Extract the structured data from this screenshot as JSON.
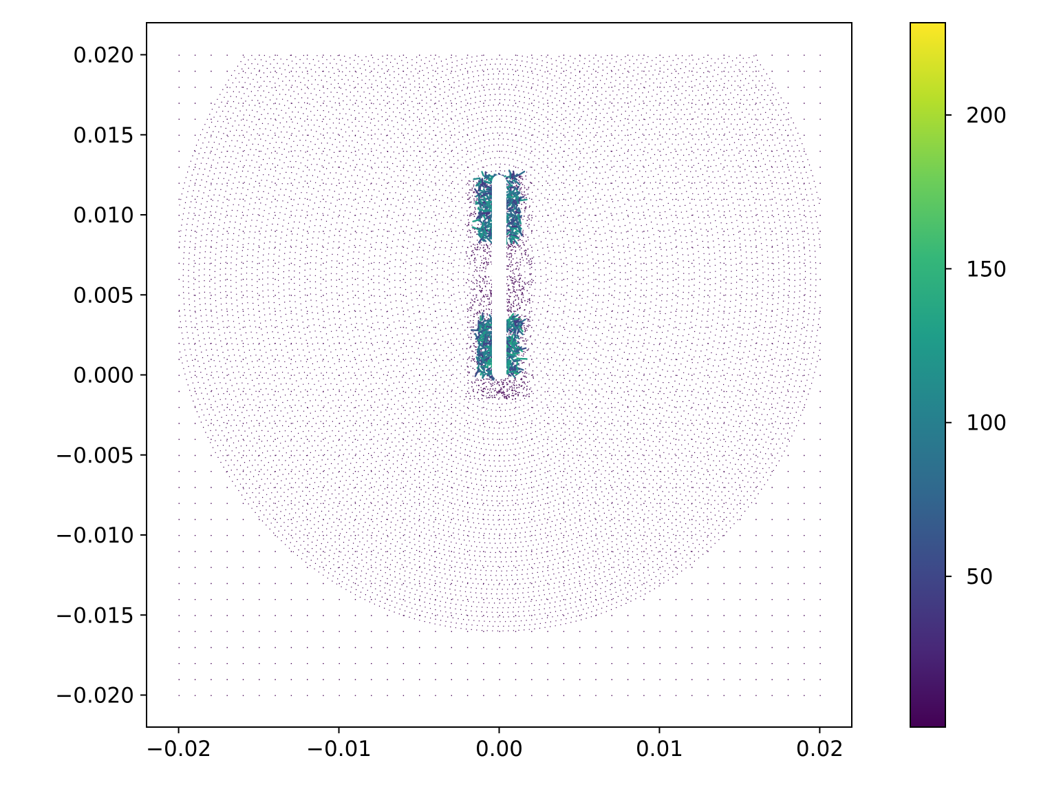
{
  "chart_data": {
    "type": "scatter",
    "title": "",
    "xlabel": "",
    "ylabel": "",
    "xlim": [
      -0.022,
      0.022
    ],
    "ylim": [
      -0.022,
      0.022
    ],
    "grid": false,
    "legend": "none",
    "x_ticks": [
      {
        "value": -0.02,
        "label": "−0.02"
      },
      {
        "value": -0.01,
        "label": "−0.01"
      },
      {
        "value": 0.0,
        "label": "0.00"
      },
      {
        "value": 0.01,
        "label": "0.01"
      },
      {
        "value": 0.02,
        "label": "0.02"
      }
    ],
    "y_ticks": [
      {
        "value": 0.02,
        "label": "0.020"
      },
      {
        "value": 0.015,
        "label": "0.015"
      },
      {
        "value": 0.01,
        "label": "0.010"
      },
      {
        "value": 0.005,
        "label": "0.005"
      },
      {
        "value": 0.0,
        "label": "0.000"
      },
      {
        "value": -0.005,
        "label": "−0.005"
      },
      {
        "value": -0.01,
        "label": "−0.010"
      },
      {
        "value": -0.015,
        "label": "−0.015"
      },
      {
        "value": -0.02,
        "label": "−0.020"
      }
    ],
    "grid_extent": {
      "x": [
        -0.02,
        0.02
      ],
      "y": [
        -0.02,
        0.02
      ]
    },
    "slot": {
      "x_center": 0.0,
      "half_width": 0.00045,
      "y_top": 0.0125,
      "y_bottom": -0.0003
    },
    "high_value_regions": [
      {
        "x": [
          -0.0013,
          0.0013
        ],
        "y": [
          0.0085,
          0.0125
        ],
        "value": 110
      },
      {
        "x": [
          -0.0013,
          0.0013
        ],
        "y": [
          0.0,
          0.0035
        ],
        "value": 120
      }
    ],
    "colorbar": {
      "colormap": "viridis",
      "range": [
        1,
        230
      ],
      "ticks": [
        {
          "value": 50,
          "label": "50"
        },
        {
          "value": 100,
          "label": "100"
        },
        {
          "value": 150,
          "label": "150"
        },
        {
          "value": 200,
          "label": "200"
        }
      ]
    },
    "colors": {
      "viridis_stops": [
        "#440154",
        "#482878",
        "#3e4989",
        "#31688e",
        "#26828e",
        "#1f9e89",
        "#35b779",
        "#6ece58",
        "#b5de2b",
        "#fde725"
      ],
      "low_value": "#440154"
    }
  }
}
